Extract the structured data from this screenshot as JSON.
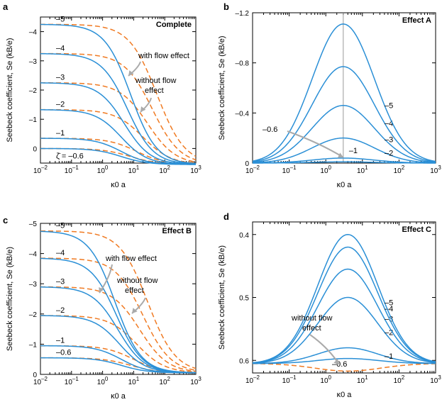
{
  "chart_data": [
    {
      "panel": "a",
      "title": "Complete",
      "type": "line",
      "xscale": "log",
      "xlim": [
        0.01,
        1000
      ],
      "ylim": [
        0.5,
        -4.5
      ],
      "xticks": [
        "10^-2",
        "10^-1",
        "10^0",
        "10^1",
        "10^2",
        "10^3"
      ],
      "yticks": [
        0,
        -1,
        -2,
        -3,
        -4
      ],
      "ytick_labels": [
        "0",
        "–1",
        "–2",
        "–3",
        "–4"
      ],
      "xlabel": "κ0 a",
      "ylabel": "Seebeck coefficient, Se (kB/e)",
      "series_labels": [
        "ζ̄ = –0.6",
        "–1",
        "–2",
        "–3",
        "–4",
        "–5"
      ],
      "solid_plateaus": [
        0.0,
        -0.35,
        -1.33,
        -2.25,
        -3.25,
        -4.25
      ],
      "dashed_plateaus": [
        0.0,
        -0.35,
        -1.33,
        -2.25,
        -3.25,
        -4.25
      ],
      "solid_midpoints_log10": [
        0.6,
        0.6,
        0.6,
        0.7,
        0.8,
        0.9
      ],
      "dashed_midpoints_log10": [
        0.9,
        1.1,
        1.3,
        1.45,
        1.6,
        1.75
      ],
      "limit": 0.55,
      "annotations": [
        "with flow effect",
        "without flow",
        "effect"
      ]
    },
    {
      "panel": "b",
      "title": "Effect A",
      "type": "line",
      "xscale": "log",
      "xlim": [
        0.01,
        1000
      ],
      "ylim": [
        0,
        -1.2
      ],
      "xticks": [
        "10^-2",
        "10^-1",
        "10^0",
        "10^1",
        "10^2",
        "10^3"
      ],
      "yticks": [
        0,
        -0.4,
        -0.8,
        -1.2
      ],
      "ytick_labels": [
        "0",
        "–0.4",
        "–0.8",
        "–1.2"
      ],
      "xlabel": "κ0 a",
      "ylabel": "Seebeck coefficient, Se (kB/e)",
      "series_labels": [
        "–0.6",
        "–1",
        "–2",
        "–3",
        "–4",
        "–5"
      ],
      "peaks": [
        -0.01,
        -0.04,
        -0.2,
        -0.46,
        -0.77,
        -1.11
      ],
      "peak_x": 3,
      "annotations": []
    },
    {
      "panel": "c",
      "title": "Effect B",
      "type": "line",
      "xscale": "log",
      "xlim": [
        0.01,
        1000
      ],
      "ylim": [
        0,
        -5
      ],
      "xticks": [
        "10^-2",
        "10^-1",
        "10^0",
        "10^1",
        "10^2",
        "10^3"
      ],
      "yticks": [
        0,
        -1,
        -2,
        -3,
        -4,
        -5
      ],
      "ytick_labels": [
        "0",
        "–1",
        "–2",
        "–3",
        "–4",
        "–5"
      ],
      "xlabel": "κ0 a",
      "ylabel": "Seebeck coefficient, Se (kB/e)",
      "series_labels": [
        "–0.6",
        "–1",
        "–2",
        "–3",
        "–4",
        "–5"
      ],
      "solid_plateaus": [
        -0.55,
        -0.95,
        -1.95,
        -2.9,
        -3.85,
        -4.75
      ],
      "dashed_plateaus": [
        -0.55,
        -0.95,
        -1.95,
        -2.9,
        -3.85,
        -4.75
      ],
      "solid_midpoints_log10": [
        0.6,
        0.6,
        0.55,
        0.5,
        0.45,
        0.4
      ],
      "dashed_midpoints_log10": [
        0.9,
        1.0,
        1.1,
        1.2,
        1.3,
        1.45
      ],
      "limit": -0.05,
      "annotations": [
        "with flow effect",
        "without flow",
        "effect"
      ]
    },
    {
      "panel": "d",
      "title": "Effect C",
      "type": "line",
      "xscale": "log",
      "xlim": [
        0.01,
        1000
      ],
      "ylim": [
        0.62,
        0.38
      ],
      "xticks": [
        "10^-2",
        "10^-1",
        "10^0",
        "10^1",
        "10^2",
        "10^3"
      ],
      "yticks": [
        0.6,
        0.5,
        0.4
      ],
      "ytick_labels": [
        "0.6",
        "0.5",
        "0.4"
      ],
      "xlabel": "κ0 a",
      "ylabel": "Seebeck coefficient, Se (kB/e)",
      "series_labels": [
        "–0.6",
        "–1",
        "–2",
        "–3",
        "–4",
        "–5"
      ],
      "peaks": [
        0.597,
        0.58,
        0.5,
        0.455,
        0.42,
        0.4
      ],
      "peak_x": 4,
      "baseline": 0.605,
      "annotations": [
        "without flow",
        "effect"
      ]
    }
  ]
}
